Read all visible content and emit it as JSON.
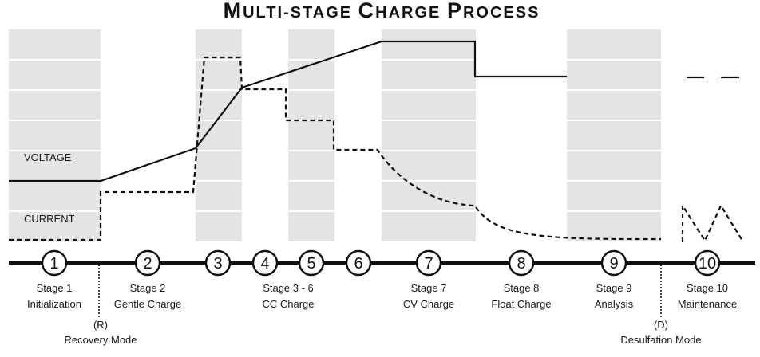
{
  "title": {
    "word1_cap": "M",
    "word1_rest": "ULTI-STAGE",
    "word2_cap": "C",
    "word2_rest": "HARGE",
    "word3_cap": "P",
    "word3_rest": "ROCESS"
  },
  "axis_labels": {
    "voltage": "VOLTAGE",
    "current": "CURRENT"
  },
  "stage_markers": [
    "1",
    "2",
    "3",
    "4",
    "5",
    "6",
    "7",
    "8",
    "9",
    "10"
  ],
  "stage_labels": {
    "s1": [
      "Stage 1",
      "Initialization"
    ],
    "s2": [
      "Stage 2",
      "Gentle Charge"
    ],
    "s36": [
      "Stage 3 - 6",
      "CC Charge"
    ],
    "s7": [
      "Stage 7",
      "CV Charge"
    ],
    "s8": [
      "Stage 8",
      "Float Charge"
    ],
    "s9": [
      "Stage 9",
      "Analysis"
    ],
    "s10": [
      "Stage 10",
      "Maintenance"
    ]
  },
  "modes": {
    "recovery": [
      "(R)",
      "Recovery Mode"
    ],
    "desulfation": [
      "(D)",
      "Desulfation Mode"
    ]
  },
  "colors": {
    "band": "#e4e4e4",
    "line": "#111111",
    "grid": "#ffffff"
  }
}
